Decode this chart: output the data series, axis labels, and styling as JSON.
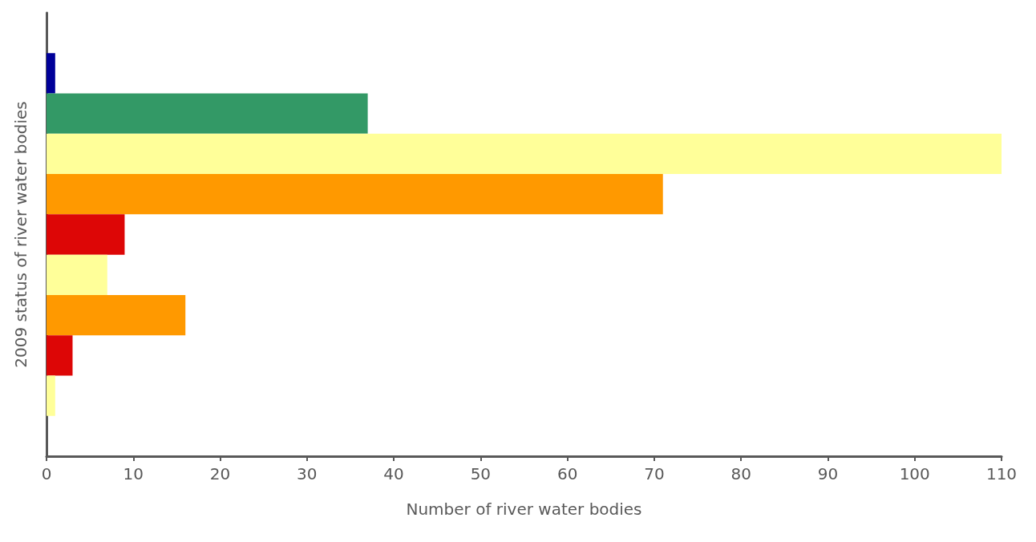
{
  "chart_data": {
    "type": "bar",
    "orientation": "horizontal",
    "xlabel": "Number of river water bodies",
    "ylabel": "2009 status of river water bodies",
    "categories": [
      null,
      null,
      null,
      null,
      null,
      null,
      null,
      null,
      null,
      null,
      null
    ],
    "values": [
      null,
      1,
      37,
      110,
      71,
      9,
      7,
      16,
      3,
      1,
      null
    ],
    "colors": [
      "#000099",
      "#000099",
      "#339966",
      "#ffff99",
      "#ff9900",
      "#dd0606",
      "#ffff99",
      "#ff9900",
      "#dd0606",
      "#ffff99",
      "#ffff99"
    ],
    "xlim": [
      0,
      110
    ],
    "xticks": [
      0,
      10,
      20,
      30,
      40,
      50,
      60,
      70,
      80,
      90,
      100,
      110
    ],
    "grid": false
  }
}
